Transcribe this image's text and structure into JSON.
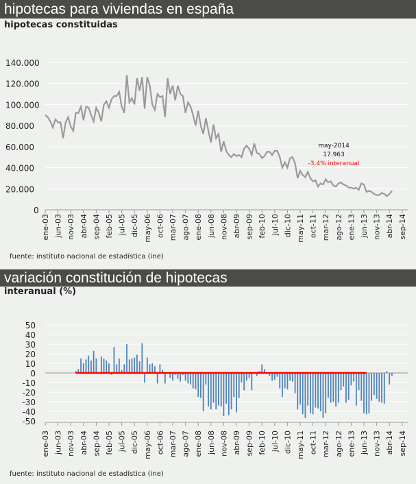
{
  "header1": {
    "title": "hipotecas para viviendas en españa",
    "subtitle": "hipotecas constituidas",
    "source": "fuente: instituto nacional de estadística (ine)"
  },
  "header2": {
    "title": "variación constitución de hipotecas",
    "subtitle": "interanual (%)",
    "source": "fuente: instituto nacional de estadística (ine)"
  },
  "chart_data": [
    {
      "type": "line",
      "title": "hipotecas constituidas",
      "ylim": [
        0,
        140000
      ],
      "yticks": [
        "0",
        "20.000",
        "40.000",
        "60.000",
        "80.000",
        "100.000",
        "120.000",
        "140.000"
      ],
      "xticks": [
        "ene-03",
        "jun-03",
        "nov-03",
        "abr-04",
        "sep-04",
        "feb-05",
        "jul-05",
        "dic-05",
        "may-06",
        "oct-06",
        "mar-07",
        "ago-07",
        "ene-08",
        "jun-08",
        "nov-08",
        "abr-09",
        "sep-09",
        "feb-10",
        "jul-10",
        "dic-10",
        "may-11",
        "oct-11",
        "mar-12",
        "ago-12",
        "ene-13",
        "jun-13",
        "nov-13",
        "abr-14",
        "sep-14"
      ],
      "x_start": "ene-03",
      "color": "#9a9a9a",
      "values": [
        90,
        88,
        84,
        78,
        86,
        83,
        83,
        68,
        83,
        88,
        79,
        75,
        92,
        92,
        98,
        85,
        98,
        97,
        90,
        84,
        97,
        92,
        84,
        100,
        103,
        97,
        105,
        108,
        108,
        112,
        98,
        92,
        128,
        102,
        106,
        100,
        125,
        113,
        126,
        96,
        126,
        118,
        100,
        95,
        110,
        107,
        108,
        88,
        125,
        110,
        118,
        104,
        118,
        110,
        108,
        92,
        102,
        98,
        90,
        80,
        94,
        80,
        72,
        87,
        75,
        64,
        81,
        68,
        72,
        55,
        65,
        56,
        52,
        50,
        53,
        51,
        52,
        50,
        58,
        61,
        58,
        52,
        63,
        54,
        53,
        49,
        51,
        55,
        55,
        52,
        56,
        56,
        50,
        40,
        45,
        40,
        49,
        50,
        44,
        30,
        37,
        33,
        31,
        36,
        30,
        27,
        28,
        22,
        25,
        24,
        29,
        26,
        27,
        23,
        22,
        25,
        26,
        24,
        23,
        21,
        21,
        20,
        21,
        19,
        25,
        24,
        17,
        18,
        17,
        15,
        14,
        14,
        16,
        15,
        13,
        15,
        17.963
      ],
      "values_unit": "miles",
      "annotation": {
        "label": "may-2014",
        "value": "17.963",
        "change": "-3,4% interanual",
        "change_color": "#ff0000"
      }
    },
    {
      "type": "bar",
      "title": "interanual (%)",
      "ylim": [
        -50,
        50
      ],
      "yticks": [
        "-50",
        "-40",
        "-30",
        "-20",
        "-10",
        "0",
        "10",
        "20",
        "30",
        "40",
        "50"
      ],
      "xticks": [
        "ene-03",
        "jun-03",
        "nov-03",
        "abr-04",
        "sep-04",
        "feb-05",
        "jul-05",
        "dic-05",
        "may-06",
        "oct-06",
        "mar-07",
        "ago-07",
        "ene-08",
        "jun-08",
        "nov-08",
        "abr-09",
        "sep-09",
        "feb-10",
        "jul-10",
        "dic-10",
        "may-11",
        "oct-11",
        "mar-12",
        "ago-12",
        "ene-13",
        "jun-13",
        "nov-13",
        "abr-14",
        "sep-14"
      ],
      "x_start": "ene-04",
      "color": "#4f81bd",
      "values": [
        2,
        4,
        15,
        10,
        14,
        18,
        13,
        23,
        15,
        -1,
        17,
        15,
        13,
        10,
        -2,
        27,
        9,
        15,
        3,
        9,
        30,
        14,
        15,
        16,
        19,
        12,
        31,
        -10,
        16,
        9,
        10,
        7,
        -11,
        9,
        3,
        -11,
        0,
        -5,
        -8,
        -2,
        -6,
        -9,
        -2,
        -8,
        -11,
        -12,
        -16,
        -17,
        -25,
        -26,
        -40,
        -12,
        -35,
        -38,
        -31,
        -38,
        -34,
        -35,
        -45,
        -32,
        -44,
        -38,
        -25,
        -41,
        -26,
        -10,
        -18,
        -8,
        -5,
        -18,
        0,
        -3,
        2,
        9,
        4,
        0,
        -3,
        -8,
        -7,
        -4,
        -16,
        -25,
        -16,
        -17,
        -8,
        -9,
        -21,
        -38,
        -33,
        -43,
        -47,
        -34,
        -42,
        -43,
        -36,
        -37,
        -40,
        -47,
        -42,
        -26,
        -31,
        -30,
        -35,
        -31,
        -18,
        -14,
        -31,
        -28,
        -13,
        -9,
        -34,
        -18,
        -29,
        -42,
        -43,
        -42,
        -29,
        -23,
        -27,
        -30,
        -31,
        -32,
        2,
        -12,
        -3
      ],
      "reference_line": {
        "value": 0,
        "from": "ene-04",
        "to": "jul-13",
        "color": "#ff0000"
      }
    }
  ]
}
